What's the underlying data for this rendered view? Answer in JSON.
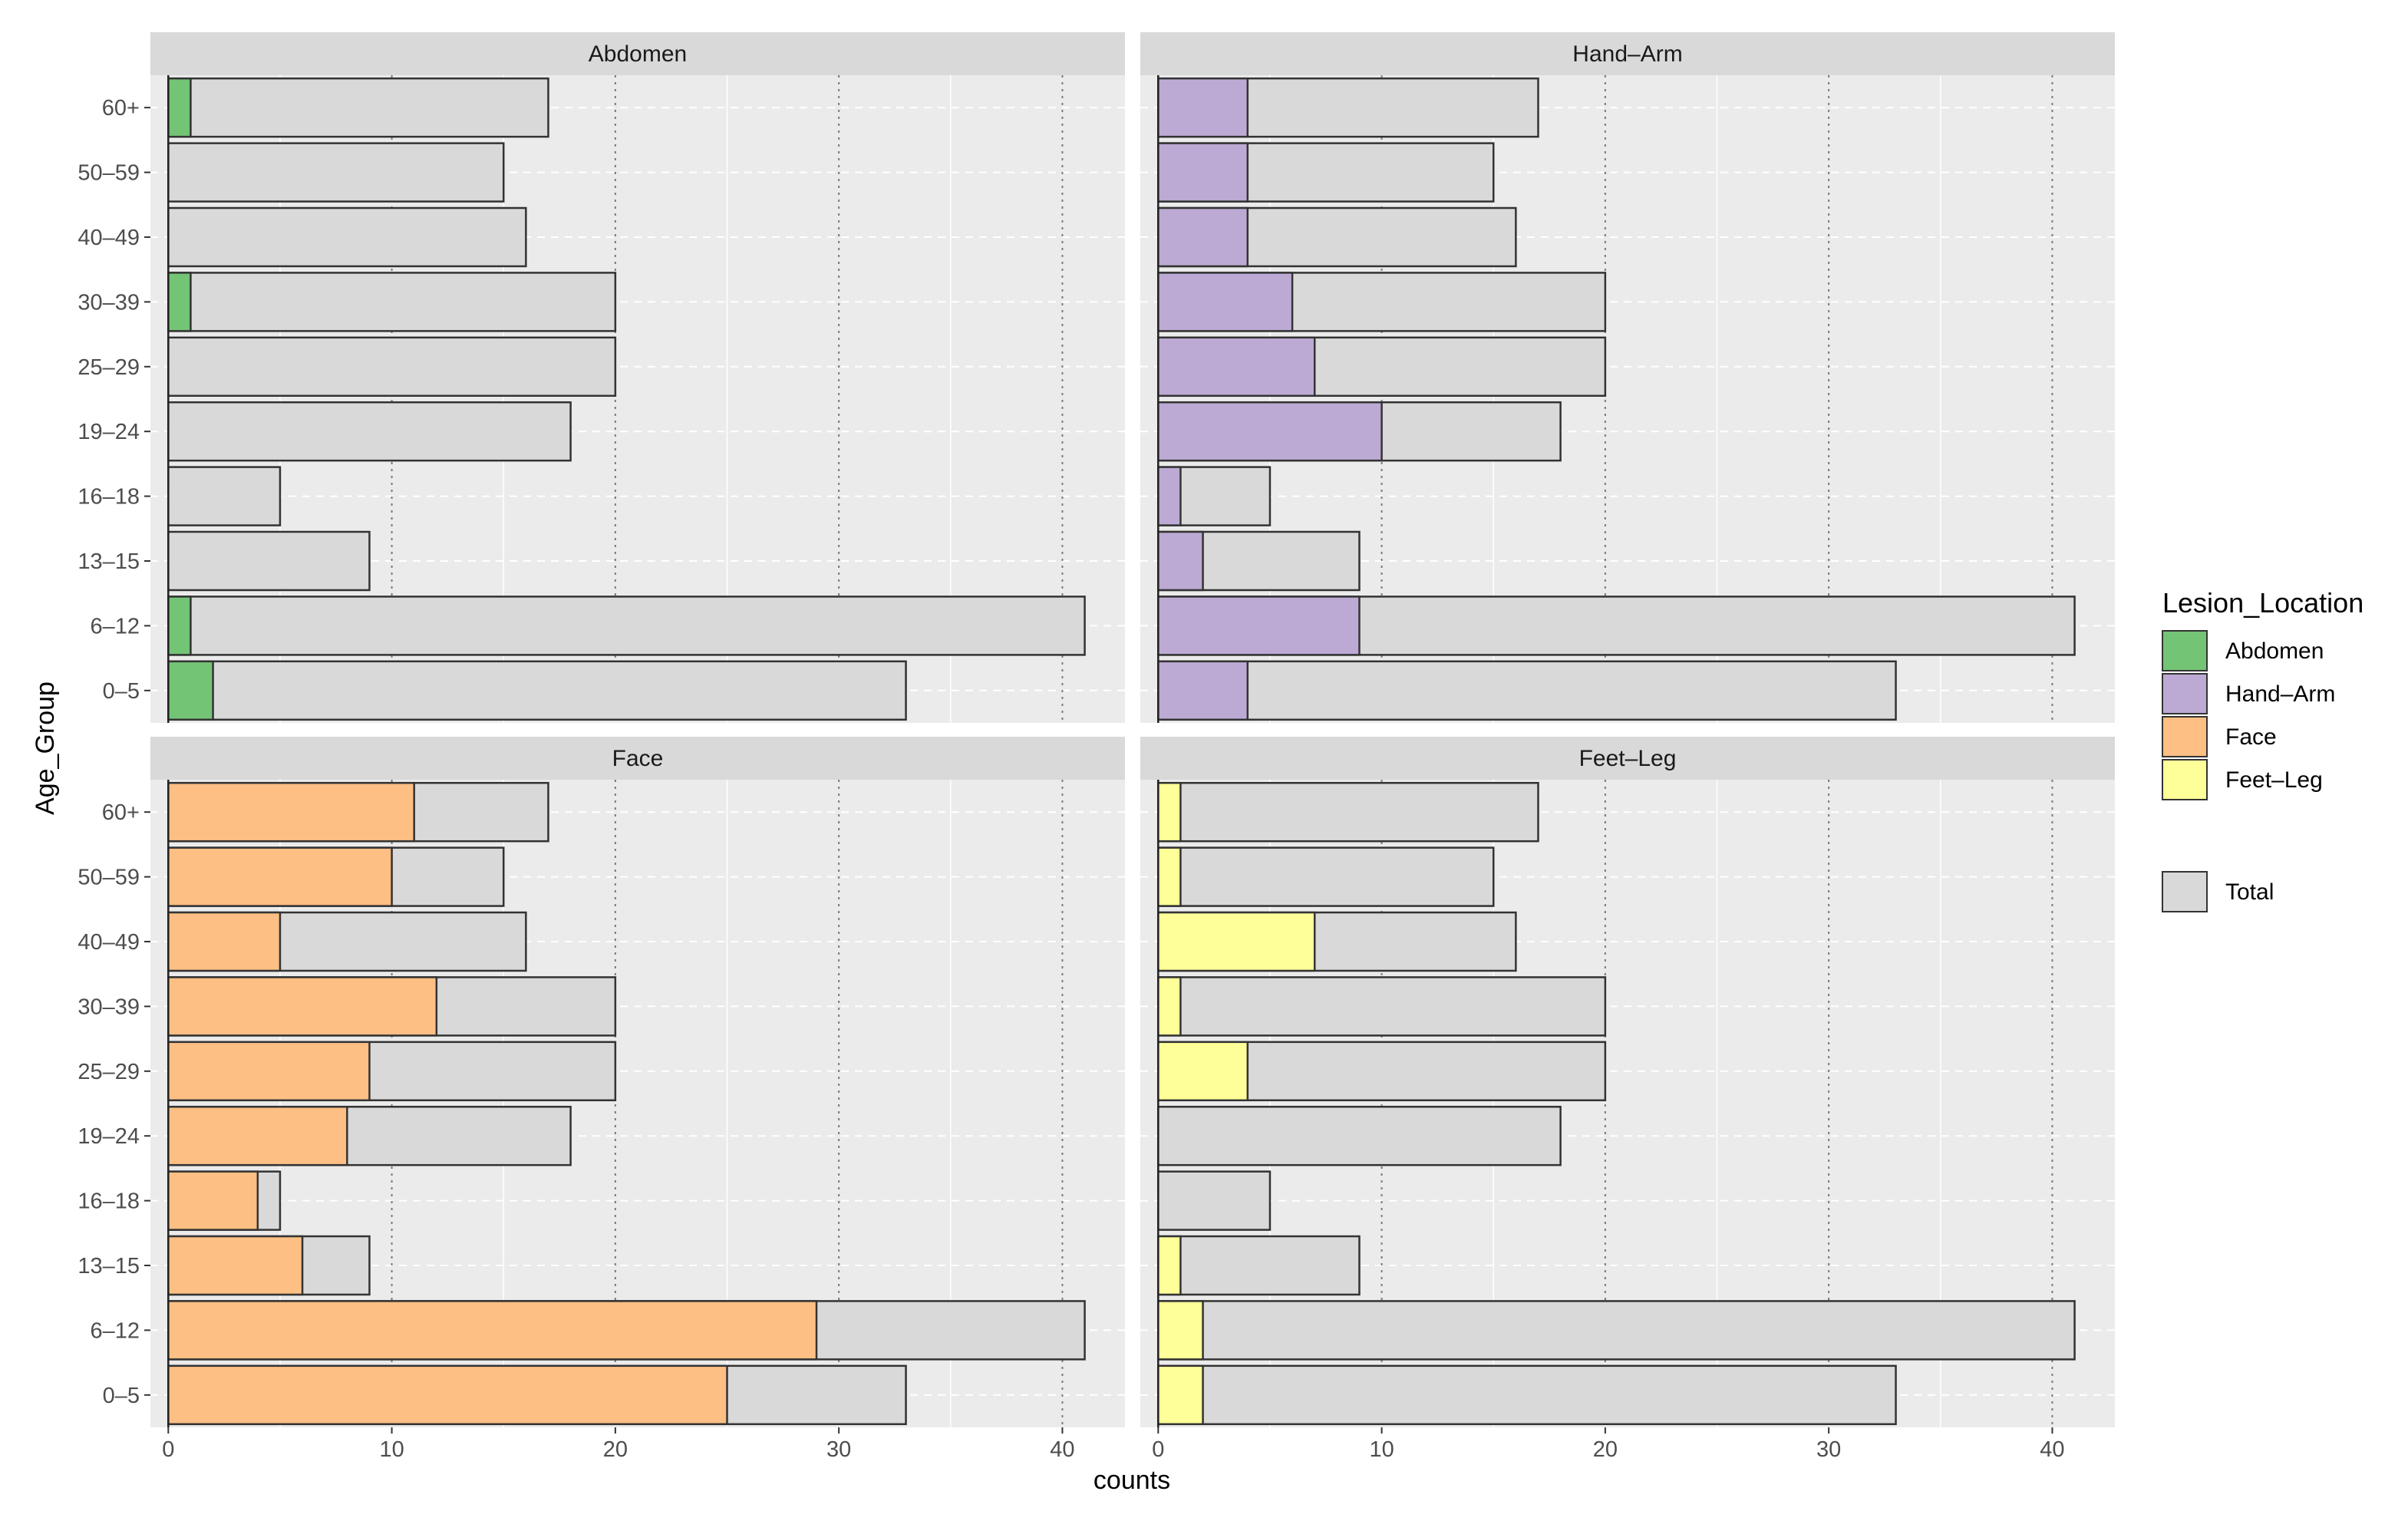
{
  "chart_data": {
    "type": "bar",
    "orientation": "horizontal",
    "facets": [
      "Abdomen",
      "Hand–Arm",
      "Face",
      "Feet–Leg"
    ],
    "categories": [
      "0–5",
      "6–12",
      "13–15",
      "16–18",
      "19–24",
      "25–29",
      "30–39",
      "40–49",
      "50–59",
      "60+"
    ],
    "total": [
      33,
      41,
      9,
      5,
      18,
      20,
      20,
      16,
      15,
      17
    ],
    "series": [
      {
        "name": "Abdomen",
        "color": "#74c476",
        "values": [
          2,
          1,
          0,
          0,
          0,
          0,
          1,
          0,
          0,
          1
        ]
      },
      {
        "name": "Hand–Arm",
        "color": "#bcaad4",
        "values": [
          4,
          9,
          2,
          1,
          10,
          7,
          6,
          4,
          4,
          4
        ]
      },
      {
        "name": "Face",
        "color": "#fdbf84",
        "values": [
          25,
          29,
          6,
          4,
          8,
          9,
          12,
          5,
          10,
          11
        ]
      },
      {
        "name": "Feet–Leg",
        "color": "#ffff99",
        "values": [
          2,
          2,
          1,
          0,
          0,
          4,
          1,
          7,
          1,
          1
        ]
      }
    ],
    "total_color": "#d9d9d9",
    "panel_background": "#ebebeb",
    "strip_background": "#d9d9d9",
    "xlabel": "counts",
    "ylabel": "Age_Group",
    "xticks": [
      0,
      10,
      20,
      30,
      40
    ],
    "xlim": [
      -0.8,
      42.8
    ],
    "grid": true,
    "legend": {
      "title": "Lesion_Location",
      "items": [
        "Abdomen",
        "Hand–Arm",
        "Face",
        "Feet–Leg"
      ],
      "total_label": "Total",
      "position": "right"
    }
  }
}
